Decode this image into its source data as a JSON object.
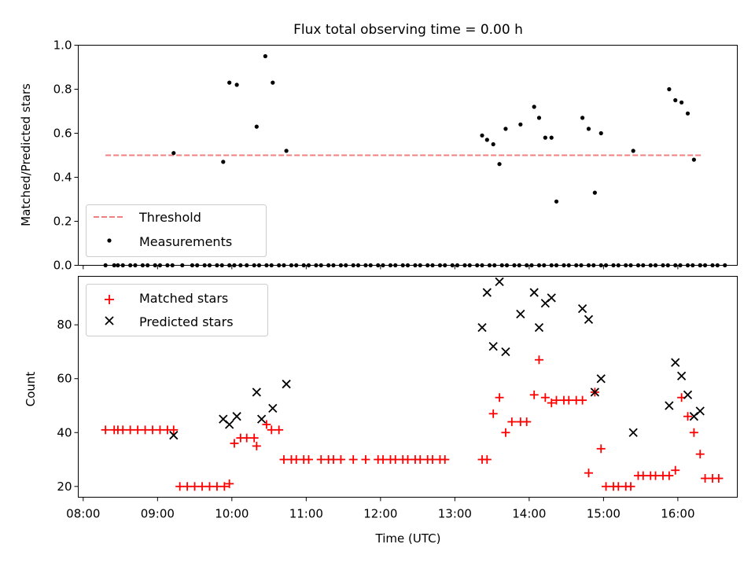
{
  "title": "Flux total observing time = 0.00 h",
  "xlabel": "Time (UTC)",
  "x_tick_labels": [
    "08:00",
    "09:00",
    "10:00",
    "11:00",
    "12:00",
    "13:00",
    "14:00",
    "15:00",
    "16:00"
  ],
  "colors": {
    "threshold": "#f08080",
    "measurement": "#000000",
    "matched": "#ff0000",
    "predicted": "#000000"
  },
  "chart_data": [
    {
      "type": "scatter",
      "ylabel": "Matched/Predicted stars",
      "xlim": [
        "07:56",
        "16:48"
      ],
      "ylim": [
        0,
        1.0
      ],
      "y_ticks": [
        "0.0",
        "0.2",
        "0.4",
        "0.6",
        "0.8",
        "1.0"
      ],
      "legend_position": "lower-left",
      "series": [
        {
          "name": "Threshold",
          "kind": "dashed-line",
          "x": [
            "08:18",
            "16:20"
          ],
          "y": [
            0.5,
            0.5
          ]
        },
        {
          "name": "Measurements",
          "kind": "dot",
          "x": [
            "08:18",
            "08:25",
            "08:28",
            "08:32",
            "08:38",
            "08:42",
            "08:48",
            "08:52",
            "08:58",
            "09:02",
            "09:08",
            "09:12",
            "09:20",
            "09:28",
            "09:32",
            "09:38",
            "09:42",
            "09:48",
            "09:52",
            "09:58",
            "10:02",
            "10:07",
            "10:12",
            "10:18",
            "10:22",
            "10:28",
            "10:32",
            "10:38",
            "10:42",
            "10:48",
            "10:52",
            "10:58",
            "11:02",
            "11:08",
            "11:12",
            "11:18",
            "11:22",
            "11:28",
            "11:32",
            "11:38",
            "11:42",
            "11:48",
            "11:52",
            "11:58",
            "12:02",
            "12:08",
            "12:12",
            "12:18",
            "12:22",
            "12:28",
            "12:32",
            "12:38",
            "12:42",
            "12:48",
            "12:52",
            "12:58",
            "13:02",
            "13:08",
            "13:12",
            "13:18",
            "13:22",
            "13:28",
            "13:32",
            "13:38",
            "13:42",
            "13:48",
            "13:52",
            "13:58",
            "14:02",
            "14:08",
            "14:12",
            "14:18",
            "14:22",
            "14:28",
            "14:32",
            "14:38",
            "14:42",
            "14:48",
            "14:52",
            "14:58",
            "15:02",
            "15:08",
            "15:12",
            "15:18",
            "15:22",
            "15:28",
            "15:32",
            "15:38",
            "15:42",
            "15:48",
            "15:52",
            "15:58",
            "16:02",
            "16:08",
            "16:12",
            "16:18",
            "16:22",
            "16:28",
            "16:32",
            "16:38",
            "09:13",
            "09:53",
            "09:58",
            "10:04",
            "10:20",
            "10:27",
            "10:33",
            "10:44",
            "13:22",
            "13:26",
            "13:31",
            "13:36",
            "13:41",
            "13:53",
            "14:04",
            "14:08",
            "14:13",
            "14:18",
            "14:22",
            "14:43",
            "14:48",
            "14:53",
            "14:58",
            "15:24",
            "15:53",
            "15:58",
            "16:03",
            "16:08",
            "16:13",
            "16:18"
          ],
          "y": [
            0,
            0,
            0,
            0,
            0,
            0,
            0,
            0,
            0,
            0,
            0,
            0,
            0,
            0,
            0,
            0,
            0,
            0,
            0,
            0,
            0,
            0,
            0,
            0,
            0,
            0,
            0,
            0,
            0,
            0,
            0,
            0,
            0,
            0,
            0,
            0,
            0,
            0,
            0,
            0,
            0,
            0,
            0,
            0,
            0,
            0,
            0,
            0,
            0,
            0,
            0,
            0,
            0,
            0,
            0,
            0,
            0,
            0,
            0,
            0,
            0,
            0,
            0,
            0,
            0,
            0,
            0,
            0,
            0,
            0,
            0,
            0,
            0,
            0,
            0,
            0,
            0,
            0,
            0,
            0,
            0,
            0,
            0,
            0,
            0,
            0,
            0,
            0,
            0,
            0,
            0,
            0,
            0,
            0,
            0,
            0,
            0,
            0,
            0,
            0,
            0.51,
            0.47,
            0.83,
            0.82,
            0.63,
            0.95,
            0.83,
            0.52,
            0.59,
            0.57,
            0.55,
            0.46,
            0.62,
            0.64,
            0.72,
            0.67,
            0.58,
            0.58,
            0.29,
            0.67,
            0.62,
            0.33,
            0.6,
            0.52,
            0.8,
            0.75,
            0.74,
            0.69,
            0.48,
            0.0
          ]
        }
      ]
    },
    {
      "type": "scatter",
      "ylabel": "Count",
      "xlim": [
        "07:56",
        "16:48"
      ],
      "ylim": [
        16,
        98
      ],
      "y_ticks": [
        "20",
        "40",
        "60",
        "80"
      ],
      "legend_position": "upper-left",
      "series": [
        {
          "name": "Matched stars",
          "marker": "plus",
          "x": [
            "08:18",
            "08:25",
            "08:28",
            "08:32",
            "08:38",
            "08:44",
            "08:50",
            "08:56",
            "09:02",
            "09:08",
            "09:13",
            "09:18",
            "09:24",
            "09:30",
            "09:36",
            "09:42",
            "09:48",
            "09:54",
            "09:58",
            "10:02",
            "10:07",
            "10:12",
            "10:18",
            "10:20",
            "10:28",
            "10:32",
            "10:38",
            "10:42",
            "10:48",
            "10:52",
            "10:58",
            "11:02",
            "11:12",
            "11:18",
            "11:22",
            "11:28",
            "11:38",
            "11:48",
            "11:58",
            "12:02",
            "12:08",
            "12:12",
            "12:18",
            "12:22",
            "12:28",
            "12:32",
            "12:38",
            "12:42",
            "12:48",
            "12:52",
            "13:22",
            "13:26",
            "13:31",
            "13:36",
            "13:41",
            "13:46",
            "13:53",
            "13:58",
            "14:04",
            "14:08",
            "14:13",
            "14:18",
            "14:22",
            "14:28",
            "14:32",
            "14:38",
            "14:43",
            "14:48",
            "14:53",
            "14:58",
            "15:02",
            "15:08",
            "15:12",
            "15:18",
            "15:22",
            "15:28",
            "15:32",
            "15:38",
            "15:42",
            "15:48",
            "15:53",
            "15:58",
            "16:03",
            "16:08",
            "16:13",
            "16:18",
            "16:22",
            "16:28",
            "16:33"
          ],
          "y": [
            41,
            41,
            41,
            41,
            41,
            41,
            41,
            41,
            41,
            41,
            41,
            20,
            20,
            20,
            20,
            20,
            20,
            20,
            21,
            36,
            38,
            38,
            38,
            35,
            43,
            41,
            41,
            30,
            30,
            30,
            30,
            30,
            30,
            30,
            30,
            30,
            30,
            30,
            30,
            30,
            30,
            30,
            30,
            30,
            30,
            30,
            30,
            30,
            30,
            30,
            30,
            30,
            47,
            53,
            40,
            44,
            44,
            44,
            54,
            67,
            53,
            51,
            52,
            52,
            52,
            52,
            52,
            25,
            55,
            34,
            20,
            20,
            20,
            20,
            20,
            24,
            24,
            24,
            24,
            24,
            24,
            26,
            53,
            46,
            40,
            32,
            23,
            23,
            23
          ]
        },
        {
          "name": "Predicted stars",
          "marker": "x",
          "x": [
            "09:13",
            "09:53",
            "09:58",
            "10:04",
            "10:20",
            "10:24",
            "10:33",
            "10:44",
            "13:22",
            "13:26",
            "13:31",
            "13:36",
            "13:41",
            "13:53",
            "14:04",
            "14:08",
            "14:13",
            "14:18",
            "14:43",
            "14:48",
            "14:53",
            "14:58",
            "15:24",
            "15:53",
            "15:58",
            "16:03",
            "16:08",
            "16:13",
            "16:18"
          ],
          "y": [
            39,
            45,
            43,
            46,
            55,
            45,
            49,
            58,
            79,
            92,
            72,
            96,
            70,
            84,
            92,
            79,
            88,
            90,
            86,
            82,
            55,
            60,
            40,
            50,
            66,
            61,
            54,
            46,
            48
          ]
        }
      ]
    }
  ]
}
